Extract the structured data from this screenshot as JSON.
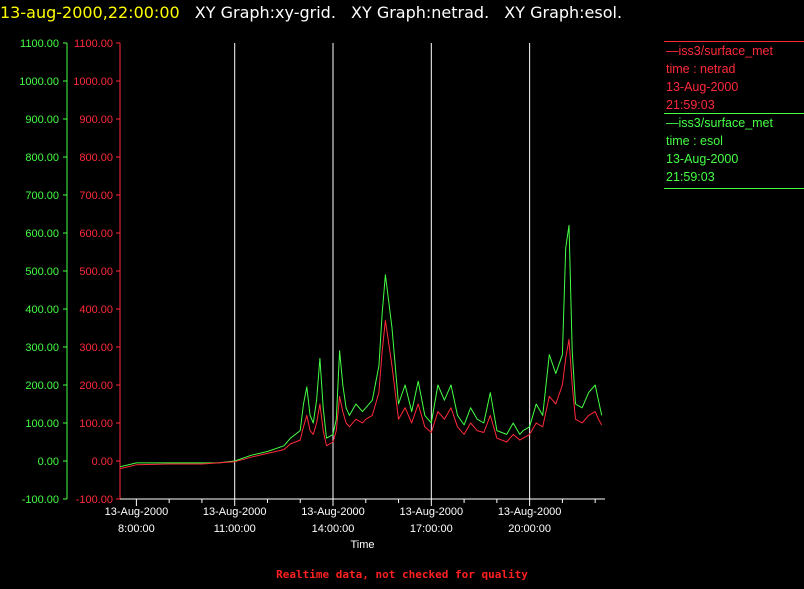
{
  "header": {
    "timestamp": "13-aug-2000,22:00:00",
    "graphs": [
      "XY Graph:xy-grid.",
      "XY Graph:netrad.",
      "XY Graph:esol."
    ]
  },
  "colors": {
    "background": "#000000",
    "timestamp": "#ffff00",
    "graph_titles": "#ffffff",
    "netrad": "#ff2a3a",
    "esol": "#44ff44",
    "grid": "#ffffff",
    "axis_text": "#ffffff",
    "note": "#ff2020"
  },
  "legend": [
    {
      "series": "—iss3/surface_met",
      "var": "time : netrad",
      "date": "13-Aug-2000",
      "time": "21:59:03",
      "color": "#ff2a3a"
    },
    {
      "series": "—iss3/surface_met",
      "var": "time : esol",
      "date": "13-Aug-2000",
      "time": "21:59:03",
      "color": "#44ff44"
    }
  ],
  "footer": {
    "note": "Realtime data, not checked for quality"
  },
  "chart_data": {
    "type": "line",
    "title": "",
    "xlabel": "Time",
    "ylabel": "",
    "ylim": [
      -100,
      1100
    ],
    "y_ticks": [
      "1100.00",
      "1000.00",
      "900.00",
      "800.00",
      "700.00",
      "600.00",
      "500.00",
      "400.00",
      "300.00",
      "200.00",
      "100.00",
      "0.00",
      "-100.00"
    ],
    "y_tick_values": [
      1100,
      1000,
      900,
      800,
      700,
      600,
      500,
      400,
      300,
      200,
      100,
      0,
      -100
    ],
    "x_range_hours": [
      7.5,
      22.3
    ],
    "x_ticks": [
      {
        "date": "13-Aug-2000",
        "time": "8:00:00",
        "hour": 8
      },
      {
        "date": "13-Aug-2000",
        "time": "11:00:00",
        "hour": 11
      },
      {
        "date": "13-Aug-2000",
        "time": "14:00:00",
        "hour": 14
      },
      {
        "date": "13-Aug-2000",
        "time": "17:00:00",
        "hour": 17
      },
      {
        "date": "13-Aug-2000",
        "time": "20:00:00",
        "hour": 20
      }
    ],
    "x_minor_hours": [
      9,
      10,
      12,
      13,
      15,
      16,
      18,
      19,
      21,
      22
    ],
    "grid_hours": [
      11,
      14,
      17,
      20
    ],
    "series": [
      {
        "key": "esol",
        "color": "#44ff44",
        "x": [
          7.5,
          8.0,
          9.0,
          10.0,
          10.5,
          11.0,
          11.5,
          12.0,
          12.5,
          12.7,
          13.0,
          13.1,
          13.2,
          13.3,
          13.4,
          13.5,
          13.6,
          13.7,
          13.8,
          14.0,
          14.1,
          14.2,
          14.3,
          14.4,
          14.5,
          14.7,
          14.9,
          15.0,
          15.2,
          15.4,
          15.5,
          15.6,
          15.8,
          16.0,
          16.2,
          16.4,
          16.6,
          16.8,
          17.0,
          17.2,
          17.4,
          17.6,
          17.8,
          18.0,
          18.2,
          18.4,
          18.6,
          18.8,
          19.0,
          19.3,
          19.5,
          19.7,
          19.8,
          20.0,
          20.2,
          20.4,
          20.6,
          20.8,
          21.0,
          21.1,
          21.2,
          21.3,
          21.4,
          21.6,
          21.8,
          22.0,
          22.1,
          22.2
        ],
        "y": [
          -15,
          -5,
          -5,
          -5,
          -5,
          0,
          15,
          25,
          40,
          60,
          80,
          150,
          195,
          120,
          100,
          160,
          270,
          140,
          60,
          70,
          110,
          290,
          200,
          140,
          120,
          150,
          130,
          140,
          160,
          250,
          390,
          490,
          350,
          150,
          200,
          130,
          210,
          120,
          100,
          200,
          160,
          200,
          120,
          95,
          140,
          110,
          100,
          180,
          80,
          70,
          100,
          70,
          80,
          90,
          150,
          120,
          280,
          230,
          280,
          560,
          620,
          290,
          150,
          140,
          180,
          200,
          160,
          120
        ]
      },
      {
        "key": "netrad",
        "color": "#ff2a3a",
        "x": [
          7.5,
          8.0,
          9.0,
          10.0,
          10.5,
          11.0,
          11.5,
          12.0,
          12.5,
          12.7,
          13.0,
          13.1,
          13.2,
          13.3,
          13.4,
          13.5,
          13.6,
          13.7,
          13.8,
          14.0,
          14.1,
          14.2,
          14.3,
          14.4,
          14.5,
          14.7,
          14.9,
          15.0,
          15.2,
          15.4,
          15.5,
          15.6,
          15.8,
          16.0,
          16.2,
          16.4,
          16.6,
          16.8,
          17.0,
          17.2,
          17.4,
          17.6,
          17.8,
          18.0,
          18.2,
          18.4,
          18.6,
          18.8,
          19.0,
          19.3,
          19.5,
          19.7,
          19.8,
          20.0,
          20.2,
          20.4,
          20.6,
          20.8,
          21.0,
          21.1,
          21.2,
          21.3,
          21.4,
          21.6,
          21.8,
          22.0,
          22.1,
          22.2
        ],
        "y": [
          -20,
          -10,
          -8,
          -8,
          -5,
          -2,
          10,
          20,
          30,
          45,
          55,
          90,
          120,
          80,
          70,
          100,
          150,
          80,
          40,
          50,
          80,
          170,
          130,
          100,
          90,
          110,
          100,
          110,
          120,
          180,
          290,
          370,
          250,
          110,
          140,
          100,
          150,
          90,
          75,
          130,
          110,
          140,
          90,
          70,
          100,
          80,
          75,
          120,
          60,
          50,
          70,
          55,
          60,
          70,
          100,
          90,
          170,
          150,
          200,
          270,
          320,
          200,
          110,
          100,
          120,
          130,
          110,
          95
        ]
      }
    ]
  }
}
